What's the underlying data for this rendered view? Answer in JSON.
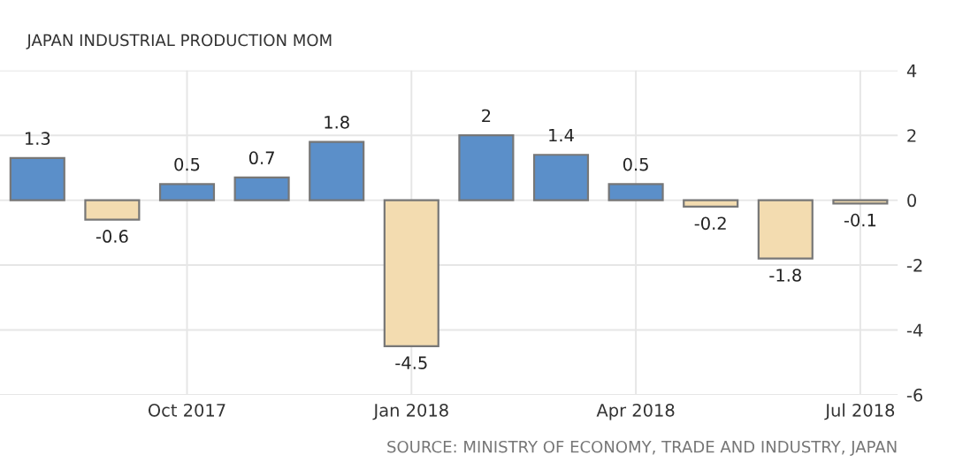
{
  "chart_data": {
    "type": "bar",
    "title": "JAPAN INDUSTRIAL PRODUCTION MOM",
    "categories": [
      null,
      null,
      "Oct 2017",
      null,
      null,
      "Jan 2018",
      null,
      null,
      "Apr 2018",
      null,
      null,
      "Jul 2018"
    ],
    "values": [
      1.3,
      -0.6,
      0.5,
      0.7,
      1.8,
      -4.5,
      2,
      1.4,
      0.5,
      -0.2,
      -1.8,
      -0.1
    ],
    "colors": [
      "#5b8fc9",
      "#f3dcb0",
      "#5b8fc9",
      "#5b8fc9",
      "#5b8fc9",
      "#f3dcb0",
      "#5b8fc9",
      "#5b8fc9",
      "#5b8fc9",
      "#f3dcb0",
      "#f3dcb0",
      "#f3dcb0"
    ],
    "ylim": [
      -6,
      4
    ],
    "yticks": [
      -6,
      -4,
      -2,
      0,
      2,
      4
    ],
    "grid": true,
    "data_labels": true,
    "annotations": [
      "SOURCE: MINISTRY OF ECONOMY, TRADE AND INDUSTRY, JAPAN"
    ]
  }
}
